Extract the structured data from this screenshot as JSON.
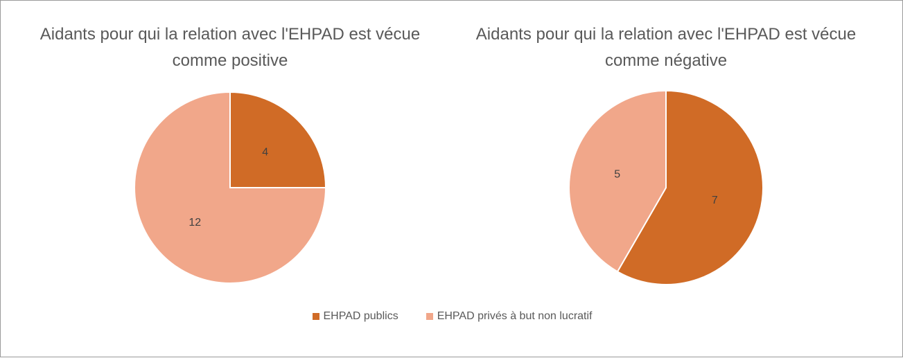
{
  "legend": {
    "categories": [
      "EHPAD publics",
      "EHPAD privés à but non lucratif"
    ],
    "colors": [
      "#d06b26",
      "#f1a78a"
    ]
  },
  "chart_data": [
    {
      "type": "pie",
      "title": "Aidants pour qui la relation avec l'EHPAD est vécue comme positive",
      "values": [
        4,
        12
      ]
    },
    {
      "type": "pie",
      "title": "Aidants pour qui la relation avec l'EHPAD est vécue comme négative",
      "values": [
        7,
        5
      ]
    }
  ]
}
